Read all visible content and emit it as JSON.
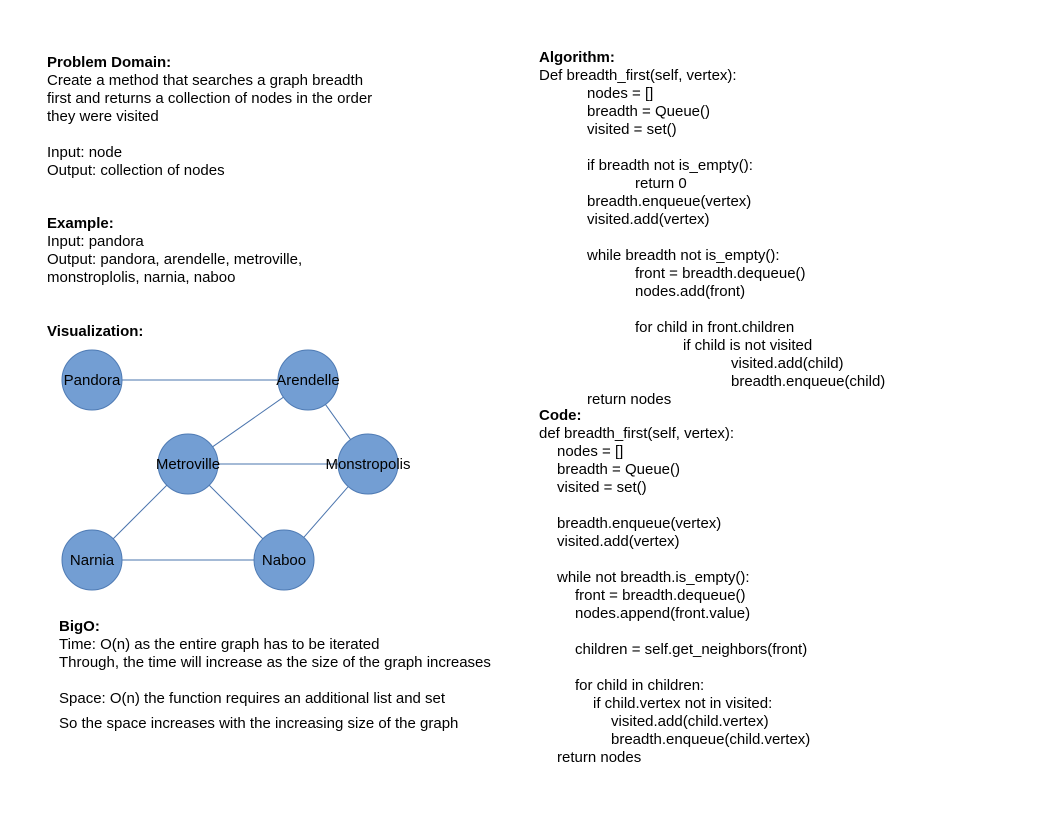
{
  "problem": {
    "heading": "Problem Domain:",
    "lines": [
      "Create a method that searches a graph breadth",
      "first and returns a collection of nodes in the order",
      "they were visited",
      "",
      "Input: node",
      "Output: collection of nodes"
    ]
  },
  "example": {
    "heading": "Example:",
    "lines": [
      "Input: pandora",
      "Output: pandora, arendelle, metroville,",
      "monstroplolis, narnia, naboo"
    ]
  },
  "visualization": {
    "heading": "Visualization:",
    "node_color": "#739ed3",
    "node_stroke": "#4f7bb4",
    "edge_color": "#4a74ad",
    "nodes": [
      {
        "id": "pandora",
        "label": "Pandora"
      },
      {
        "id": "arendelle",
        "label": "Arendelle"
      },
      {
        "id": "metroville",
        "label": "Metroville"
      },
      {
        "id": "monstropolis",
        "label": "Monstropolis"
      },
      {
        "id": "narnia",
        "label": "Narnia"
      },
      {
        "id": "naboo",
        "label": "Naboo"
      }
    ],
    "edges": [
      [
        "pandora",
        "arendelle"
      ],
      [
        "arendelle",
        "metroville"
      ],
      [
        "arendelle",
        "monstropolis"
      ],
      [
        "metroville",
        "monstropolis"
      ],
      [
        "metroville",
        "narnia"
      ],
      [
        "metroville",
        "naboo"
      ],
      [
        "monstropolis",
        "naboo"
      ],
      [
        "narnia",
        "naboo"
      ]
    ]
  },
  "bigo": {
    "heading": "BigO:",
    "lines": [
      "Time: O(n) as the entire graph has to be iterated",
      "Through, the time will increase as the size of the graph increases",
      "",
      "Space: O(n) the function requires an additional list and set",
      "So the space increases with the increasing size of the graph"
    ]
  },
  "algorithm": {
    "heading": "Algorithm:",
    "lines": [
      {
        "indent": 0,
        "text": "Def breadth_first(self, vertex):"
      },
      {
        "indent": 1,
        "text": "nodes = []"
      },
      {
        "indent": 1,
        "text": "breadth = Queue()"
      },
      {
        "indent": 1,
        "text": "visited = set()"
      },
      {
        "indent": 0,
        "text": ""
      },
      {
        "indent": 1,
        "text": "if breadth not is_empty():"
      },
      {
        "indent": 2,
        "text": "return 0"
      },
      {
        "indent": 1,
        "text": "breadth.enqueue(vertex)"
      },
      {
        "indent": 1,
        "text": "visited.add(vertex)"
      },
      {
        "indent": 0,
        "text": ""
      },
      {
        "indent": 1,
        "text": "while breadth not is_empty():"
      },
      {
        "indent": 2,
        "text": "front = breadth.dequeue()"
      },
      {
        "indent": 2,
        "text": "nodes.add(front)"
      },
      {
        "indent": 0,
        "text": ""
      },
      {
        "indent": 2,
        "text": "for child in front.children"
      },
      {
        "indent": 3,
        "text": "if child is not visited"
      },
      {
        "indent": 4,
        "text": "visited.add(child)"
      },
      {
        "indent": 4,
        "text": "breadth.enqueue(child)"
      },
      {
        "indent": 1,
        "text": "return nodes"
      }
    ]
  },
  "code": {
    "heading": "Code:",
    "lines": [
      {
        "indent": 0,
        "text": "def breadth_first(self, vertex):"
      },
      {
        "indent": 1,
        "text": "nodes = []"
      },
      {
        "indent": 1,
        "text": "breadth = Queue()"
      },
      {
        "indent": 1,
        "text": "visited = set()"
      },
      {
        "indent": 0,
        "text": ""
      },
      {
        "indent": 1,
        "text": "breadth.enqueue(vertex)"
      },
      {
        "indent": 1,
        "text": "visited.add(vertex)"
      },
      {
        "indent": 0,
        "text": ""
      },
      {
        "indent": 1,
        "text": "while not breadth.is_empty():"
      },
      {
        "indent": 2,
        "text": "front = breadth.dequeue()"
      },
      {
        "indent": 2,
        "text": "nodes.append(front.value)"
      },
      {
        "indent": 0,
        "text": ""
      },
      {
        "indent": 2,
        "text": "children = self.get_neighbors(front)"
      },
      {
        "indent": 0,
        "text": ""
      },
      {
        "indent": 2,
        "text": "for child in children:"
      },
      {
        "indent": 3,
        "text": "if child.vertex not in visited:"
      },
      {
        "indent": 4,
        "text": "visited.add(child.vertex)"
      },
      {
        "indent": 4,
        "text": "breadth.enqueue(child.vertex)"
      },
      {
        "indent": 1,
        "text": "return nodes"
      }
    ]
  }
}
